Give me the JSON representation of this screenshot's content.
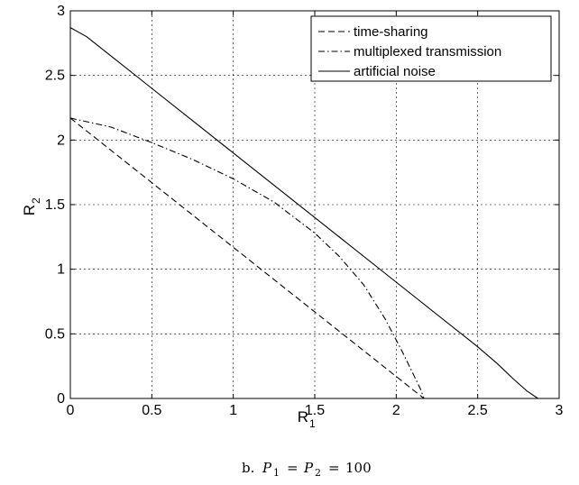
{
  "chart_data": {
    "type": "line",
    "xlabel": "R",
    "xlabel_subscript": "1",
    "ylabel": "R",
    "ylabel_subscript": "2",
    "xlim": [
      0,
      3
    ],
    "ylim": [
      0,
      3
    ],
    "xticks": [
      0,
      0.5,
      1,
      1.5,
      2,
      2.5,
      3
    ],
    "yticks": [
      0,
      0.5,
      1,
      1.5,
      2,
      2.5,
      3
    ],
    "xtick_labels": [
      "0",
      "0.5",
      "1",
      "1.5",
      "2",
      "2.5",
      "3"
    ],
    "ytick_labels": [
      "0",
      "0.5",
      "1",
      "1.5",
      "2",
      "2.5",
      "3"
    ],
    "grid": true,
    "legend_position": "top-right",
    "series": [
      {
        "name": "time-sharing",
        "style": "dashed",
        "color": "#000000",
        "x": [
          0,
          0.5,
          1.0,
          1.5,
          2.0,
          2.17
        ],
        "y": [
          2.17,
          1.67,
          1.17,
          0.67,
          0.17,
          0
        ]
      },
      {
        "name": "multiplexed transmission",
        "style": "dashdot",
        "color": "#000000",
        "x": [
          0,
          0.25,
          0.5,
          0.75,
          1.0,
          1.25,
          1.5,
          1.65,
          1.8,
          1.93,
          2.03,
          2.1,
          2.15,
          2.17
        ],
        "y": [
          2.17,
          2.1,
          1.98,
          1.85,
          1.7,
          1.52,
          1.28,
          1.1,
          0.88,
          0.62,
          0.38,
          0.2,
          0.07,
          0
        ]
      },
      {
        "name": "artificial noise",
        "style": "solid",
        "color": "#000000",
        "x": [
          0,
          0.1,
          0.25,
          0.5,
          1.0,
          1.5,
          2.0,
          2.5,
          2.62,
          2.72,
          2.8,
          2.87
        ],
        "y": [
          2.87,
          2.8,
          2.65,
          2.4,
          1.9,
          1.4,
          0.9,
          0.4,
          0.27,
          0.15,
          0.06,
          0
        ]
      }
    ]
  },
  "caption": {
    "prefix": "b.",
    "var1": "P",
    "sub1": "1",
    "equals1": "=",
    "var2": "P",
    "sub2": "2",
    "equals2": "=",
    "value": "100"
  }
}
